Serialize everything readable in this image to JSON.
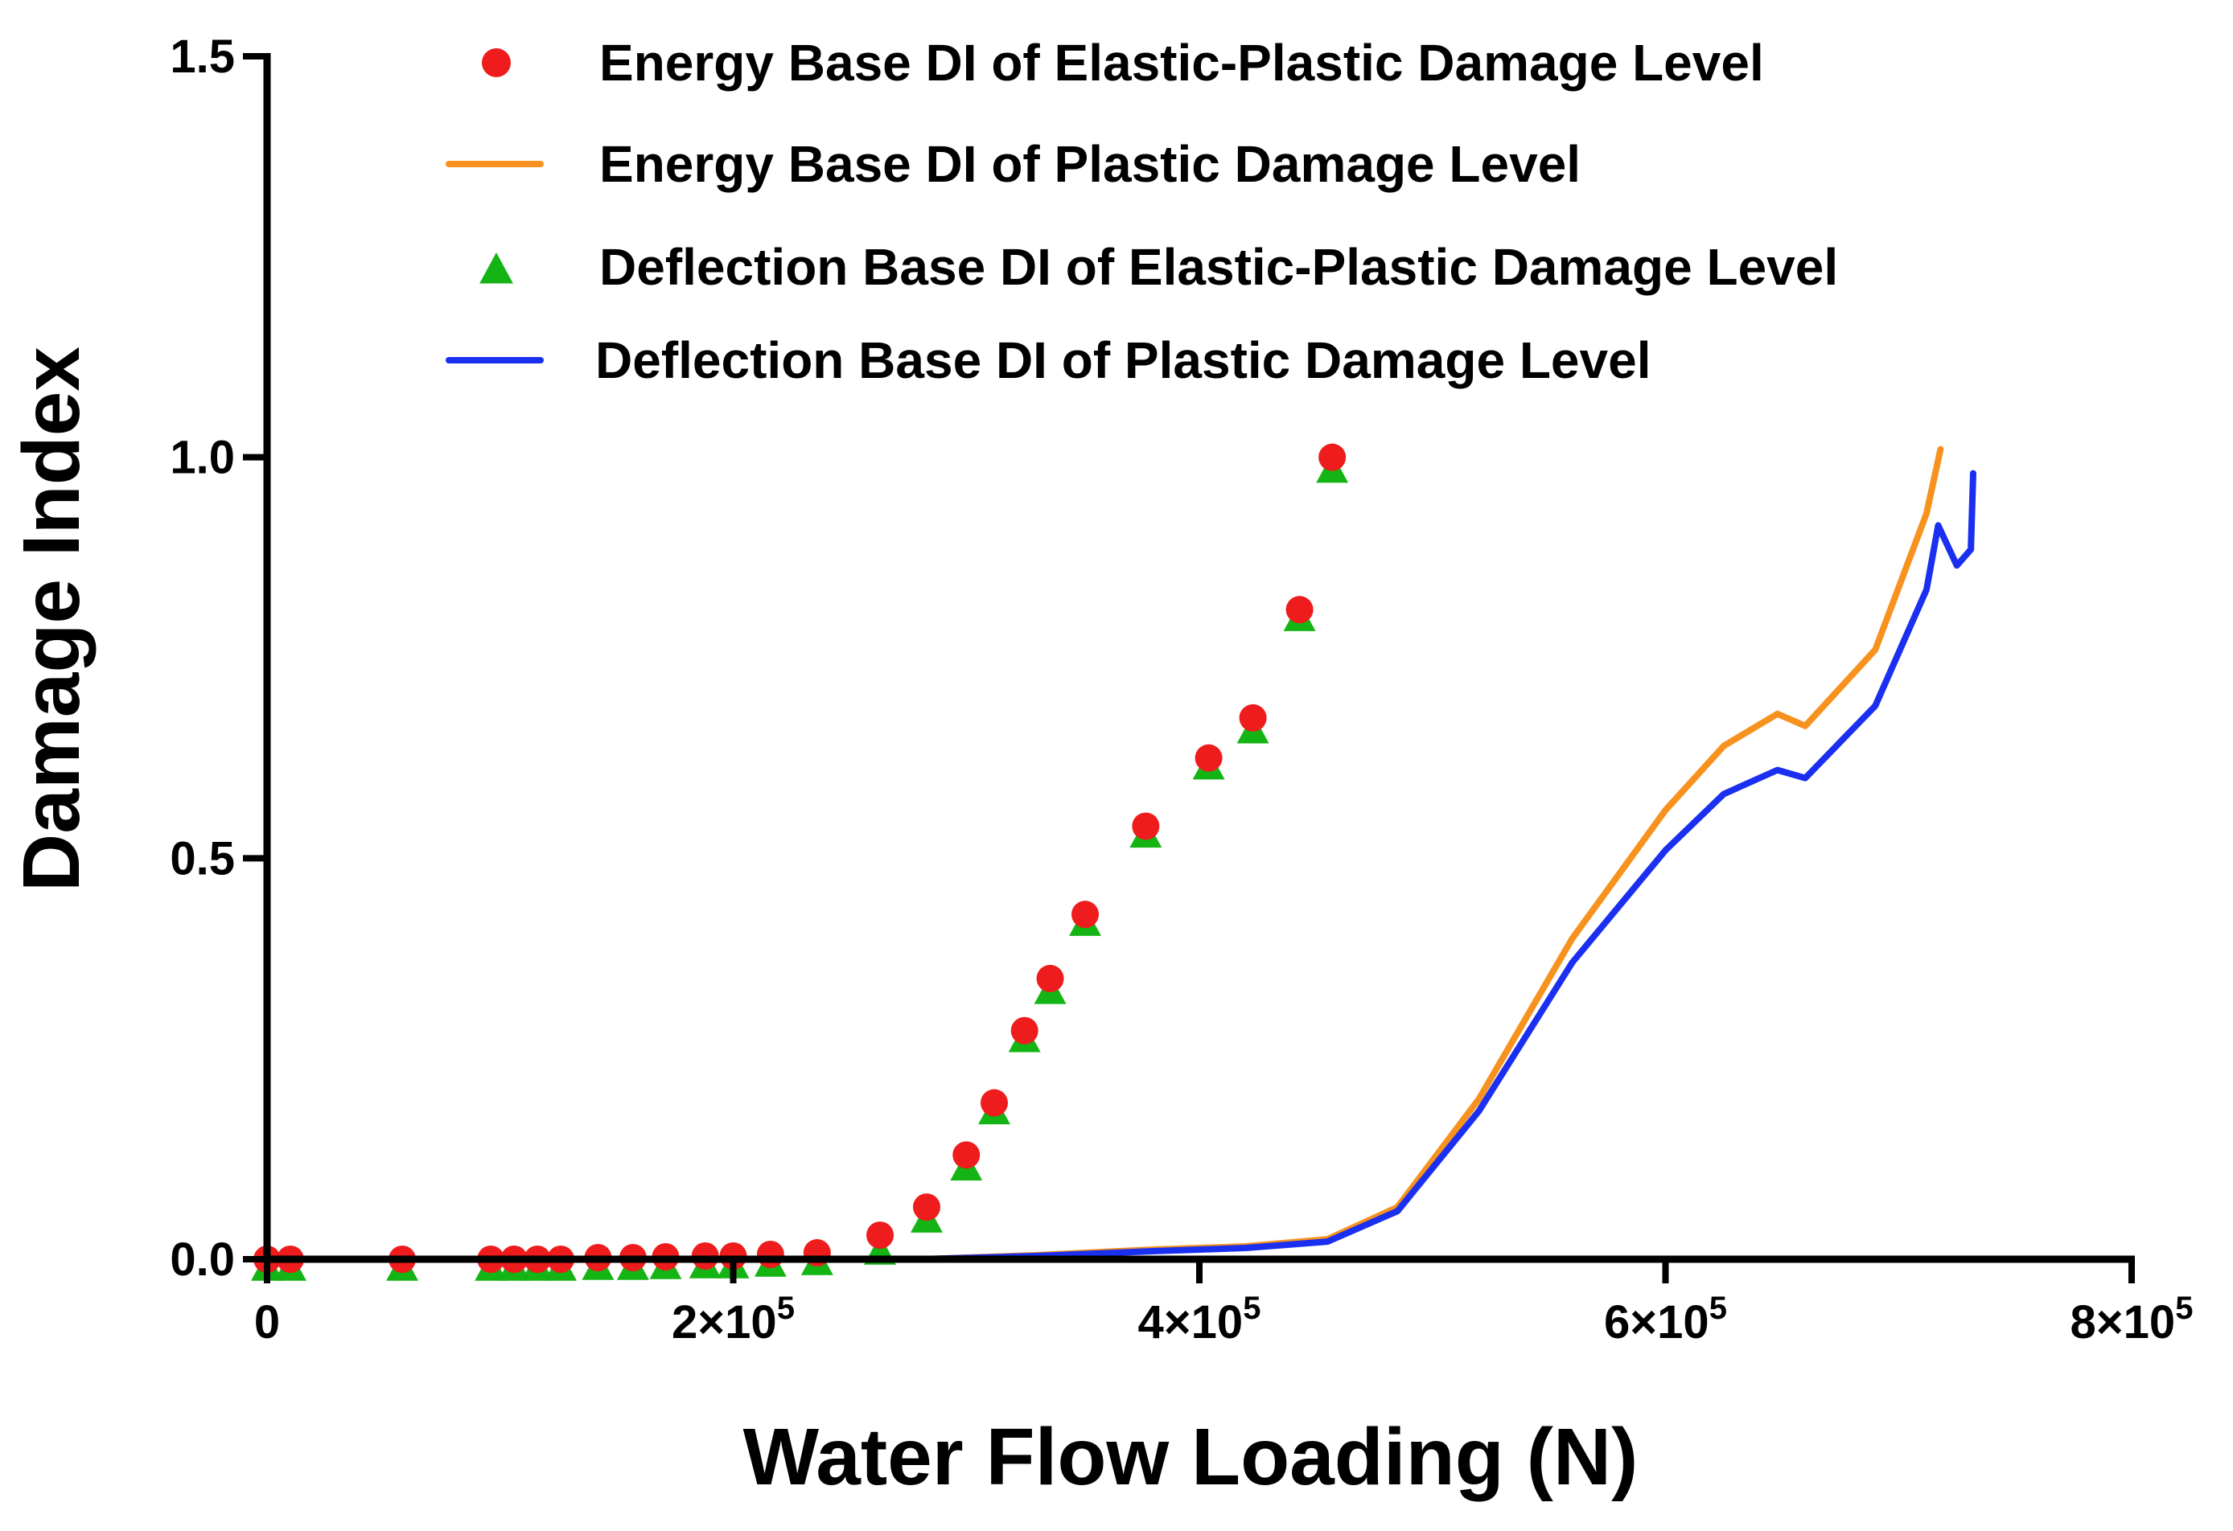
{
  "chart_data": {
    "type": "scatter",
    "xlabel": "Water Flow Loading (N)",
    "ylabel": "Damage Index",
    "xlim": [
      0,
      800000
    ],
    "ylim": [
      0,
      1.5
    ],
    "x_ticks": [
      0,
      200000,
      400000,
      600000,
      800000
    ],
    "x_tick_labels": [
      {
        "base": "0",
        "exp": ""
      },
      {
        "base": "2×10",
        "exp": "5"
      },
      {
        "base": "4×10",
        "exp": "5"
      },
      {
        "base": "6×10",
        "exp": "5"
      },
      {
        "base": "8×10",
        "exp": "5"
      }
    ],
    "y_ticks": [
      0.0,
      0.5,
      1.0,
      1.5
    ],
    "y_tick_labels": [
      "0.0",
      "0.5",
      "1.0",
      "1.5"
    ],
    "legend_position": "top-center",
    "series": [
      {
        "name": "Energy Base DI of Elastic-Plastic Damage Level",
        "style": "marker-circle",
        "color": "#ee1c1c",
        "x": [
          0,
          10000,
          58000,
          96000,
          106000,
          116000,
          126000,
          142000,
          157000,
          171000,
          188000,
          200000,
          216000,
          236000,
          263000,
          283000,
          300000,
          312000,
          325000,
          336000,
          351000,
          377000,
          404000,
          423000,
          443000,
          457000
        ],
        "y": [
          0.0,
          0.0,
          0.0,
          0.0,
          0.0,
          0.0,
          0.0,
          0.002,
          0.002,
          0.003,
          0.004,
          0.004,
          0.006,
          0.008,
          0.03,
          0.065,
          0.13,
          0.195,
          0.285,
          0.35,
          0.43,
          0.54,
          0.625,
          0.675,
          0.81,
          1.0
        ]
      },
      {
        "name": "Energy Base DI of Plastic Damage Level",
        "style": "line",
        "color": "#f7921e",
        "x": [
          0,
          280000,
          330000,
          380000,
          420000,
          455000,
          485000,
          520000,
          560000,
          600000,
          625000,
          648000,
          660000,
          690000,
          712000,
          718000
        ],
        "y": [
          0.0,
          0.0,
          0.005,
          0.012,
          0.016,
          0.025,
          0.065,
          0.2,
          0.4,
          0.56,
          0.64,
          0.68,
          0.665,
          0.76,
          0.93,
          1.01
        ]
      },
      {
        "name": "Deflection Base DI of Elastic-Plastic Damage Level",
        "style": "marker-triangle",
        "color": "#14b414",
        "x": [
          0,
          10000,
          58000,
          96000,
          106000,
          116000,
          126000,
          142000,
          157000,
          171000,
          188000,
          200000,
          216000,
          236000,
          263000,
          283000,
          300000,
          312000,
          325000,
          336000,
          351000,
          377000,
          404000,
          423000,
          443000,
          457000
        ],
        "y": [
          -0.005,
          -0.005,
          -0.005,
          -0.005,
          -0.005,
          -0.005,
          -0.005,
          -0.004,
          -0.004,
          -0.003,
          -0.002,
          -0.002,
          0.0,
          0.002,
          0.015,
          0.055,
          0.12,
          0.19,
          0.28,
          0.34,
          0.425,
          0.535,
          0.62,
          0.665,
          0.805,
          0.99
        ]
      },
      {
        "name": "Deflection Base DI of Plastic Damage Level",
        "style": "line",
        "color": "#1a2ff0",
        "x": [
          0,
          280000,
          330000,
          380000,
          420000,
          455000,
          485000,
          520000,
          560000,
          600000,
          625000,
          648000,
          660000,
          690000,
          712000,
          717000,
          725000,
          731000,
          732000
        ],
        "y": [
          0.0,
          0.0,
          0.004,
          0.01,
          0.014,
          0.022,
          0.06,
          0.185,
          0.37,
          0.51,
          0.58,
          0.61,
          0.6,
          0.69,
          0.835,
          0.915,
          0.865,
          0.885,
          0.98
        ]
      }
    ]
  }
}
